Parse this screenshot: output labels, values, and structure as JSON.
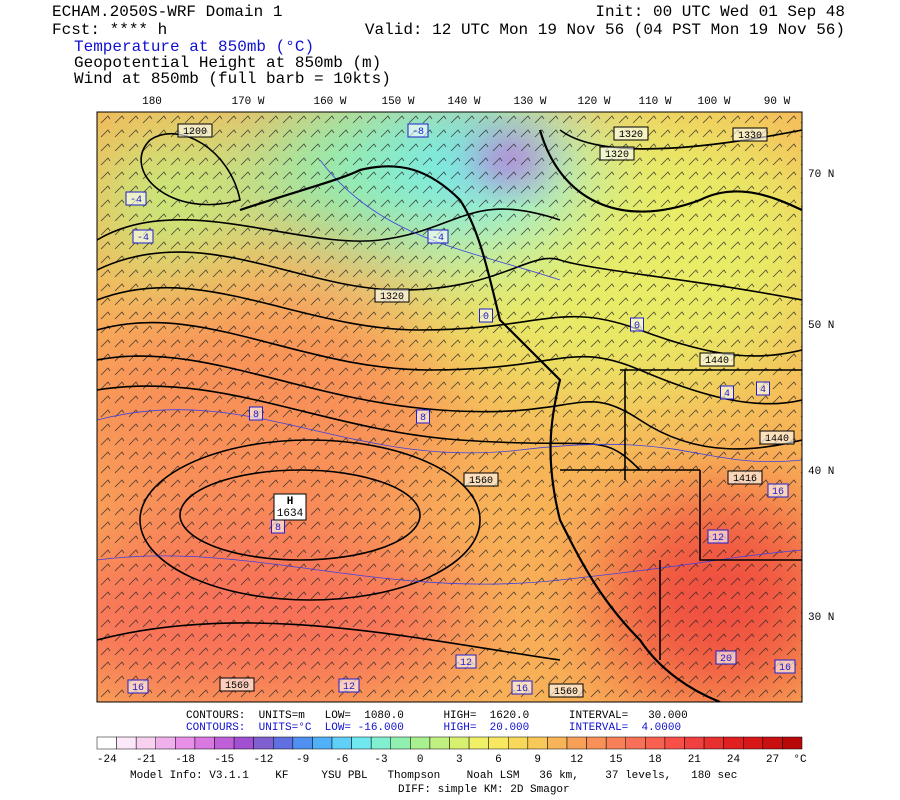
{
  "header": {
    "title": "ECHAM.2050S-WRF Domain 1",
    "fcst": "Fcst: **** h",
    "init": "Init: 00 UTC Wed 01 Sep 48",
    "valid": "Valid: 12 UTC Mon 19 Nov 56 (04 PST Mon 19 Nov 56)",
    "fields": [
      "Temperature at 850mb (°C)",
      "Geopotential Height at 850mb (m)",
      "Wind at 850mb (full barb = 10kts)"
    ]
  },
  "map": {
    "lon_labels": [
      "180",
      "170 W",
      "160 W",
      "150 W",
      "140 W",
      "130 W",
      "120 W",
      "110 W",
      "100 W",
      "90 W"
    ],
    "lat_labels": [
      "70 N",
      "50 N",
      "40 N",
      "30 N"
    ],
    "contour_labels": [
      "1200",
      "1320",
      "1320",
      "1330",
      "1320",
      "1440",
      "1440",
      "1416",
      "1560",
      "1560",
      "1560",
      "-8",
      "-4",
      "-4",
      "-4",
      "0",
      "0",
      "4",
      "4",
      "8",
      "8",
      "8",
      "12",
      "12",
      "12",
      "16",
      "16",
      "16",
      "20",
      "16"
    ],
    "high": {
      "symbol": "H",
      "value": "1634"
    }
  },
  "contours": [
    "CONTOURS:  UNITS=m   LOW=  1080.0      HIGH=  1620.0      INTERVAL=   30.000",
    "CONTOURS:  UNITS=°C  LOW= -16.000      HIGH=  20.000      INTERVAL=  4.0000"
  ],
  "colorbar": {
    "labels": [
      -24,
      -21,
      -18,
      -15,
      -12,
      -9,
      -6,
      -3,
      0,
      3,
      6,
      9,
      12,
      15,
      18,
      21,
      24,
      27
    ],
    "unit": "°C",
    "colors": [
      "#ffffff",
      "#fce8f8",
      "#f8d0f0",
      "#f0b0ec",
      "#e890e8",
      "#d878e0",
      "#c060d8",
      "#a050d0",
      "#8060d0",
      "#6070e0",
      "#5090f0",
      "#50b0f8",
      "#60d0f8",
      "#70e8f0",
      "#80f0d0",
      "#90f0b0",
      "#a8f090",
      "#c0f080",
      "#d8f070",
      "#f0f068",
      "#f8e860",
      "#f8d858",
      "#f8c858",
      "#f8b458",
      "#f8a058",
      "#f89058",
      "#f88058",
      "#f87058",
      "#f86050",
      "#f85048",
      "#f04040",
      "#e83030",
      "#e02020",
      "#d81818",
      "#c81010",
      "#b80808"
    ]
  },
  "footer": [
    "Model Info: V3.1.1    KF     YSU PBL   Thompson    Noah LSM   36 km,    37 levels,   180 sec",
    "DIFF: simple KM: 2D Smagor"
  ]
}
